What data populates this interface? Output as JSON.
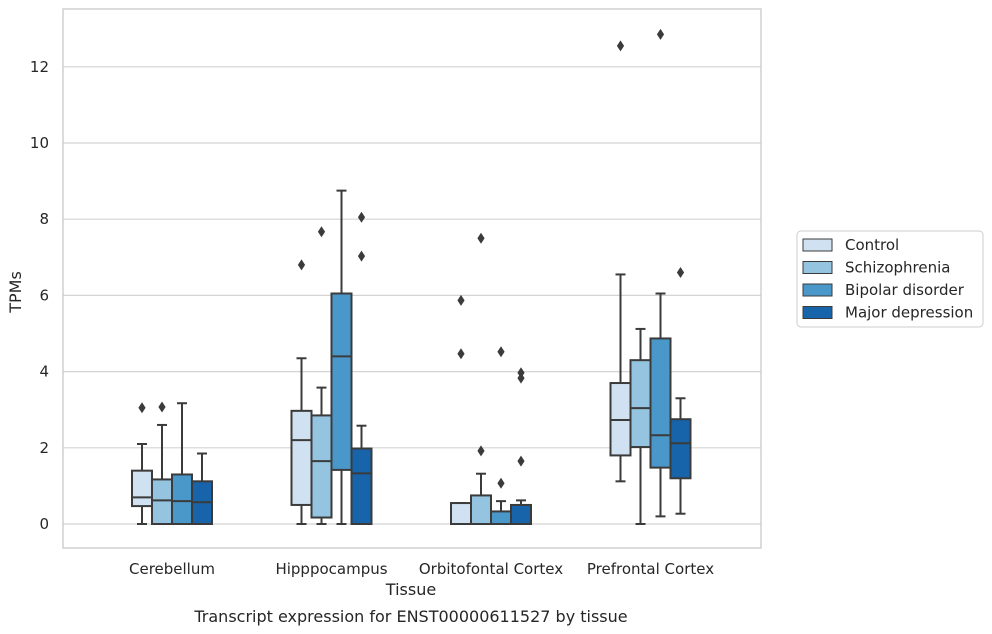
{
  "caption": "Transcript expression for ENST00000611527 by tissue",
  "chart_data": {
    "type": "box",
    "xlabel": "Tissue",
    "ylabel": "TPMs",
    "ylim": [
      -0.6,
      13.5
    ],
    "yticks": [
      0,
      2,
      4,
      6,
      8,
      10,
      12
    ],
    "grid": true,
    "legend_position": "right",
    "categories": [
      "Cerebellum",
      "Hipppocampus",
      "Orbitofontal Cortex",
      "Prefrontal Cortex"
    ],
    "series": [
      {
        "name": "Control",
        "color": "#d0e1f2",
        "boxes": [
          {
            "whislo": 0.0,
            "q1": 0.47,
            "med": 0.7,
            "q3": 1.4,
            "whishi": 2.1,
            "fliers": [
              3.05
            ]
          },
          {
            "whislo": 0.0,
            "q1": 0.5,
            "med": 2.2,
            "q3": 2.97,
            "whishi": 4.35,
            "fliers": [
              6.8
            ]
          },
          {
            "whislo": 0.0,
            "q1": 0.0,
            "med": 0.0,
            "q3": 0.55,
            "whishi": 0.55,
            "fliers": [
              4.47,
              5.87
            ]
          },
          {
            "whislo": 1.12,
            "q1": 1.8,
            "med": 2.73,
            "q3": 3.7,
            "whishi": 6.55,
            "fliers": [
              12.55
            ]
          }
        ]
      },
      {
        "name": "Schizophrenia",
        "color": "#94c4df",
        "boxes": [
          {
            "whislo": 0.0,
            "q1": 0.0,
            "med": 0.62,
            "q3": 1.17,
            "whishi": 2.6,
            "fliers": [
              3.07
            ]
          },
          {
            "whislo": 0.0,
            "q1": 0.17,
            "med": 1.65,
            "q3": 2.85,
            "whishi": 3.58,
            "fliers": [
              7.67
            ]
          },
          {
            "whislo": 0.0,
            "q1": 0.0,
            "med": 0.0,
            "q3": 0.75,
            "whishi": 1.32,
            "fliers": [
              1.92,
              7.5
            ]
          },
          {
            "whislo": 0.0,
            "q1": 2.02,
            "med": 3.04,
            "q3": 4.3,
            "whishi": 5.12,
            "fliers": []
          }
        ]
      },
      {
        "name": "Bipolar disorder",
        "color": "#4a98c9",
        "boxes": [
          {
            "whislo": 0.0,
            "q1": 0.0,
            "med": 0.6,
            "q3": 1.3,
            "whishi": 3.17,
            "fliers": []
          },
          {
            "whislo": 0.0,
            "q1": 1.42,
            "med": 4.4,
            "q3": 6.05,
            "whishi": 8.75,
            "fliers": []
          },
          {
            "whislo": 0.0,
            "q1": 0.0,
            "med": 0.0,
            "q3": 0.33,
            "whishi": 0.6,
            "fliers": [
              1.07,
              4.52
            ]
          },
          {
            "whislo": 0.2,
            "q1": 1.48,
            "med": 2.33,
            "q3": 4.87,
            "whishi": 6.05,
            "fliers": [
              12.85
            ]
          }
        ]
      },
      {
        "name": "Major depression",
        "color": "#1764ab",
        "boxes": [
          {
            "whislo": 0.0,
            "q1": 0.0,
            "med": 0.57,
            "q3": 1.12,
            "whishi": 1.85,
            "fliers": []
          },
          {
            "whislo": 0.0,
            "q1": 0.0,
            "med": 1.33,
            "q3": 1.98,
            "whishi": 2.58,
            "fliers": [
              7.03,
              8.05
            ]
          },
          {
            "whislo": 0.0,
            "q1": 0.0,
            "med": 0.0,
            "q3": 0.5,
            "whishi": 0.62,
            "fliers": [
              1.65,
              3.83,
              3.97
            ]
          },
          {
            "whislo": 0.27,
            "q1": 1.2,
            "med": 2.12,
            "q3": 2.75,
            "whishi": 3.3,
            "fliers": [
              6.6
            ]
          }
        ]
      }
    ]
  }
}
